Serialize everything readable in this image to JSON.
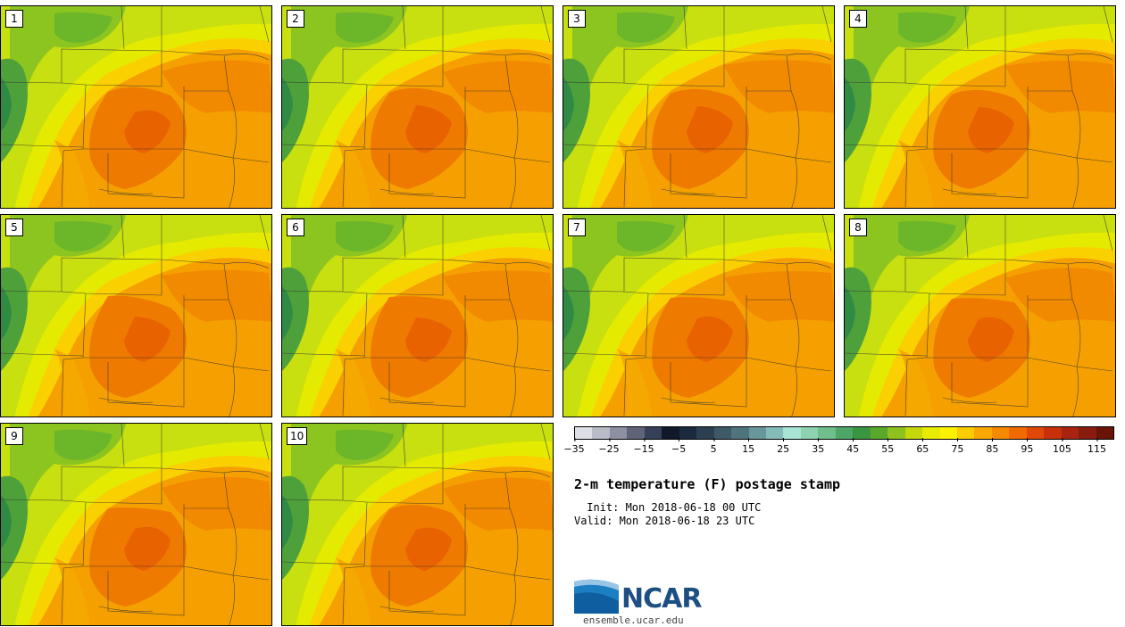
{
  "figure": {
    "title": "2-m temperature (F) postage stamp",
    "init_label": " Init: Mon 2018-06-18 00 UTC",
    "valid_label": "Valid: Mon 2018-06-18 23 UTC"
  },
  "panels": [
    {
      "label": "1"
    },
    {
      "label": "2"
    },
    {
      "label": "3"
    },
    {
      "label": "4"
    },
    {
      "label": "5"
    },
    {
      "label": "6"
    },
    {
      "label": "7"
    },
    {
      "label": "8"
    },
    {
      "label": "9"
    },
    {
      "label": "10"
    }
  ],
  "colorbar": {
    "units": "F",
    "tick_labels": [
      "−35",
      "−25",
      "−15",
      "−5",
      "5",
      "15",
      "25",
      "35",
      "45",
      "55",
      "65",
      "75",
      "85",
      "95",
      "105",
      "115"
    ],
    "colors": [
      "#dde0e6",
      "#b8bcc6",
      "#8c90a0",
      "#5f6478",
      "#37405a",
      "#10182a",
      "#1b2a3f",
      "#2c4052",
      "#3e5a68",
      "#50747e",
      "#67969b",
      "#84bcb8",
      "#a8e4d6",
      "#8ed2b0",
      "#6fbe8c",
      "#4ea666",
      "#3a9540",
      "#5aa82a",
      "#8ec01e",
      "#c4d80c",
      "#e8ec00",
      "#fff200",
      "#fbcc00",
      "#f8a800",
      "#f58a00",
      "#f06a00",
      "#e04808",
      "#c8300c",
      "#a82410",
      "#881c0e",
      "#6a1408"
    ]
  },
  "logo": {
    "brand": "NCAR",
    "site": "ensemble.ucar.edu"
  }
}
